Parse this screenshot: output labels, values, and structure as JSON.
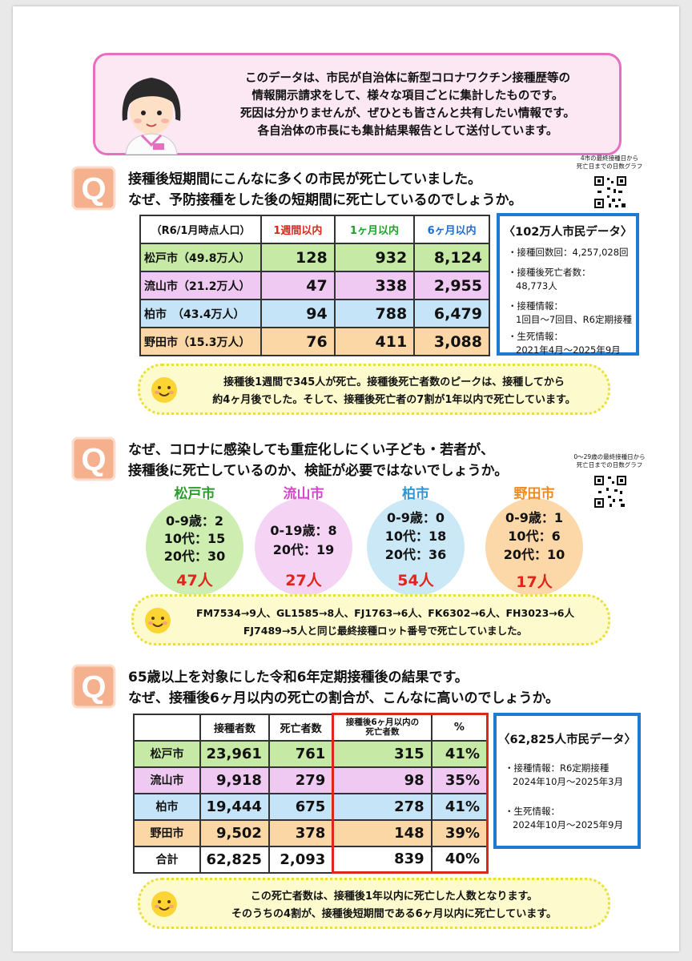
{
  "intro": {
    "lines": [
      "このデータは、市民が自治体に新型コロナワクチン接種歴等の",
      "情報開示請求をして、様々な項目ごとに集計したものです。",
      "死因は分かりませんが、ぜひとも皆さんと共有したい情報です。",
      "各自治体の市長にも集計結果報告として送付しています。"
    ]
  },
  "q1": {
    "lines": [
      "接種後短期間にこんなに多くの市民が死亡していました。",
      "なぜ、予防接種をした後の短期間に死亡しているのでしょうか。"
    ],
    "qr_caption": [
      "4市の最終接種日から",
      "死亡日までの日数グラフ"
    ],
    "table": {
      "headers": [
        "（R6/1月時点人口）",
        "1週間以内",
        "1ヶ月以内",
        "6ヶ月以内"
      ],
      "header_colors": [
        "#111111",
        "#e0251b",
        "#22a02c",
        "#1e6fd0"
      ],
      "rows": [
        {
          "city": "松戸市（49.8万人）",
          "w1": "128",
          "m1": "932",
          "m6": "8,124"
        },
        {
          "city": "流山市（21.2万人）",
          "w1": "47",
          "m1": "338",
          "m6": "2,955"
        },
        {
          "city": "柏市　（43.4万人）",
          "w1": "94",
          "m1": "788",
          "m6": "6,479"
        },
        {
          "city": "野田市（15.3万人）",
          "w1": "76",
          "m1": "411",
          "m6": "3,088"
        }
      ]
    },
    "info": {
      "title": "〈102万人市民データ〉",
      "items": [
        [
          "・接種回数回：4,257,028回"
        ],
        [
          "・接種後死亡者数：",
          "48,773人"
        ],
        [
          "・接種情報：",
          "1回目〜7回目、R6定期接種"
        ],
        [
          "・生死情報：",
          "2021年4月〜2025年9月"
        ]
      ]
    },
    "note": [
      "接種後1週間で345人が死亡。接種後死亡者数のピークは、接種してから",
      "約4ヶ月後でした。そして、接種後死亡者の7割が1年以内で死亡しています。"
    ]
  },
  "q2": {
    "lines": [
      "なぜ、コロナに感染しても重症化しにくい子ども・若者が、",
      "接種後に死亡しているのか、検証が必要ではないでしょうか。"
    ],
    "qr_caption": [
      "0〜29歳の最終接種日から",
      "死亡日までの日数グラフ"
    ],
    "cities": [
      {
        "name": "松戸市",
        "lines": [
          "0-9歳：2",
          "10代：15",
          "20代：30"
        ],
        "total": "47人",
        "color": "#cdeeb0",
        "title_color": "#2e9b2e"
      },
      {
        "name": "流山市",
        "lines": [
          "0-19歳：8",
          "20代：19"
        ],
        "total": "27人",
        "color": "#f5d3f5",
        "title_color": "#d349c8"
      },
      {
        "name": "柏市",
        "lines": [
          "0-9歳：0",
          "10代：18",
          "20代：36"
        ],
        "total": "54人",
        "color": "#cbe8f7",
        "title_color": "#2f95d8"
      },
      {
        "name": "野田市",
        "lines": [
          "0-9歳：1",
          "10代：6",
          "20代：10"
        ],
        "total": "17人",
        "color": "#fcd8a8",
        "title_color": "#ef8a1e"
      }
    ],
    "note": [
      "FM7534→9人、GL1585→8人、FJ1763→6人、FK6302→6人、FH3023→6人",
      "FJ7489→5人と同じ最終接種ロット番号で死亡していました。"
    ]
  },
  "q3": {
    "lines": [
      "65歳以上を対象にした令和6年定期接種後の結果です。",
      "なぜ、接種後6ヶ月以内の死亡の割合が、こんなに高いのでしょうか。"
    ],
    "table": {
      "headers": [
        "",
        "接種者数",
        "死亡者数",
        "接種後6ヶ月以内の\n死亡者数",
        "%"
      ],
      "rows": [
        {
          "city": "松戸市",
          "vac": "23,961",
          "dead": "761",
          "d6": "315",
          "pct": "41%"
        },
        {
          "city": "流山市",
          "vac": "9,918",
          "dead": "279",
          "d6": "98",
          "pct": "35%"
        },
        {
          "city": "柏市",
          "vac": "19,444",
          "dead": "675",
          "d6": "278",
          "pct": "41%"
        },
        {
          "city": "野田市",
          "vac": "9,502",
          "dead": "378",
          "d6": "148",
          "pct": "39%"
        },
        {
          "city": "合計",
          "vac": "62,825",
          "dead": "2,093",
          "d6": "839",
          "pct": "40%"
        }
      ]
    },
    "info": {
      "title": "〈62,825人市民データ〉",
      "items": [
        [
          "・接種情報：R6定期接種",
          "2024年10月〜2025年3月"
        ],
        [
          "・生死情報：",
          "2024年10月〜2025年9月"
        ]
      ]
    },
    "note": [
      "この死亡者数は、接種後1年以内に死亡した人数となります。",
      "そのうちの4割が、接種後短期間である6ヶ月以内に死亡しています。"
    ]
  }
}
